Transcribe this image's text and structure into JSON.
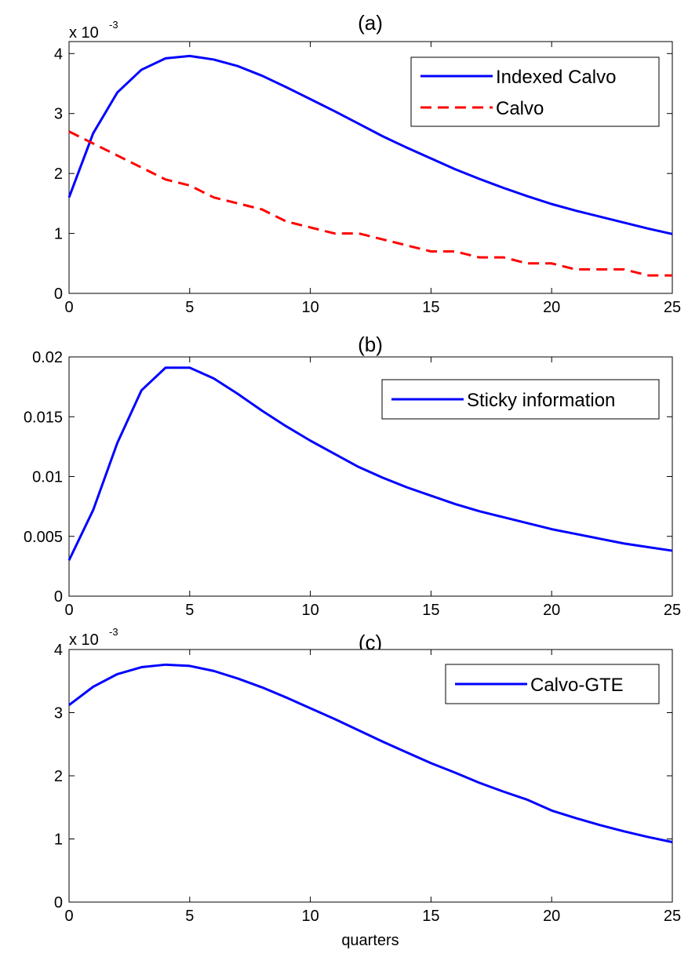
{
  "chart_data": [
    {
      "type": "line",
      "title": "(a)",
      "xlabel": "",
      "ylabel": "",
      "exponent_label": "x 10",
      "exponent_power": "-3",
      "xlim": [
        0,
        25
      ],
      "ylim": [
        0,
        4.2
      ],
      "xticks": [
        0,
        5,
        10,
        15,
        20,
        25
      ],
      "xtick_labels": [
        "0",
        "5",
        "10",
        "15",
        "20",
        "25"
      ],
      "yticks": [
        0,
        1,
        2,
        3,
        4
      ],
      "ytick_labels": [
        "0",
        "1",
        "2",
        "3",
        "4"
      ],
      "grid": false,
      "legend_position": "top-right",
      "x": [
        0,
        1,
        2,
        3,
        4,
        5,
        6,
        7,
        8,
        9,
        10,
        11,
        12,
        13,
        14,
        15,
        16,
        17,
        18,
        19,
        20,
        21,
        22,
        23,
        24,
        25
      ],
      "series": [
        {
          "name": "Indexed Calvo",
          "color": "#0000ff",
          "style": "solid",
          "values": [
            1.6,
            2.67,
            3.35,
            3.73,
            3.92,
            3.96,
            3.9,
            3.79,
            3.63,
            3.44,
            3.24,
            3.04,
            2.83,
            2.62,
            2.43,
            2.25,
            2.07,
            1.91,
            1.76,
            1.62,
            1.49,
            1.38,
            1.28,
            1.18,
            1.08,
            0.99
          ]
        },
        {
          "name": "Calvo",
          "color": "#ff0000",
          "style": "dashed",
          "values": [
            2.7,
            2.5,
            2.3,
            2.1,
            1.9,
            1.8,
            1.6,
            1.5,
            1.4,
            1.2,
            1.1,
            1.0,
            1.0,
            0.9,
            0.8,
            0.7,
            0.7,
            0.6,
            0.6,
            0.5,
            0.5,
            0.4,
            0.4,
            0.4,
            0.3,
            0.3
          ]
        }
      ]
    },
    {
      "type": "line",
      "title": "(b)",
      "xlabel": "",
      "ylabel": "",
      "xlim": [
        0,
        25
      ],
      "ylim": [
        0,
        0.02
      ],
      "xticks": [
        0,
        5,
        10,
        15,
        20,
        25
      ],
      "xtick_labels": [
        "0",
        "5",
        "10",
        "15",
        "20",
        "25"
      ],
      "yticks": [
        0,
        0.005,
        0.01,
        0.015,
        0.02
      ],
      "ytick_labels": [
        "0",
        "0.005",
        "0.01",
        "0.015",
        "0.02"
      ],
      "grid": false,
      "legend_position": "top-right",
      "x": [
        0,
        1,
        2,
        3,
        4,
        5,
        6,
        7,
        8,
        9,
        10,
        11,
        12,
        13,
        14,
        15,
        16,
        17,
        18,
        19,
        20,
        21,
        22,
        23,
        24,
        25
      ],
      "series": [
        {
          "name": "Sticky information",
          "color": "#0000ff",
          "style": "solid",
          "values": [
            0.003,
            0.0072,
            0.0128,
            0.0172,
            0.0191,
            0.0191,
            0.0182,
            0.0169,
            0.0155,
            0.0142,
            0.013,
            0.0119,
            0.0108,
            0.0099,
            0.0091,
            0.0084,
            0.0077,
            0.0071,
            0.0066,
            0.0061,
            0.0056,
            0.0052,
            0.0048,
            0.0044,
            0.0041,
            0.0038
          ]
        }
      ]
    },
    {
      "type": "line",
      "title": "(c)",
      "xlabel": "quarters",
      "ylabel": "",
      "exponent_label": "x 10",
      "exponent_power": "-3",
      "xlim": [
        0,
        25
      ],
      "ylim": [
        0,
        4
      ],
      "xticks": [
        0,
        5,
        10,
        15,
        20,
        25
      ],
      "xtick_labels": [
        "0",
        "5",
        "10",
        "15",
        "20",
        "25"
      ],
      "yticks": [
        0,
        1,
        2,
        3,
        4
      ],
      "ytick_labels": [
        "0",
        "1",
        "2",
        "3",
        "4"
      ],
      "grid": false,
      "legend_position": "top-right",
      "x": [
        0,
        1,
        2,
        3,
        4,
        5,
        6,
        7,
        8,
        9,
        10,
        11,
        12,
        13,
        14,
        15,
        16,
        17,
        18,
        19,
        20,
        21,
        22,
        23,
        24,
        25
      ],
      "series": [
        {
          "name": "Calvo-GTE",
          "color": "#0000ff",
          "style": "solid",
          "values": [
            3.12,
            3.41,
            3.61,
            3.72,
            3.76,
            3.74,
            3.66,
            3.54,
            3.4,
            3.24,
            3.07,
            2.9,
            2.72,
            2.54,
            2.37,
            2.2,
            2.05,
            1.89,
            1.75,
            1.62,
            1.45,
            1.33,
            1.22,
            1.12,
            1.03,
            0.95
          ]
        }
      ]
    }
  ]
}
